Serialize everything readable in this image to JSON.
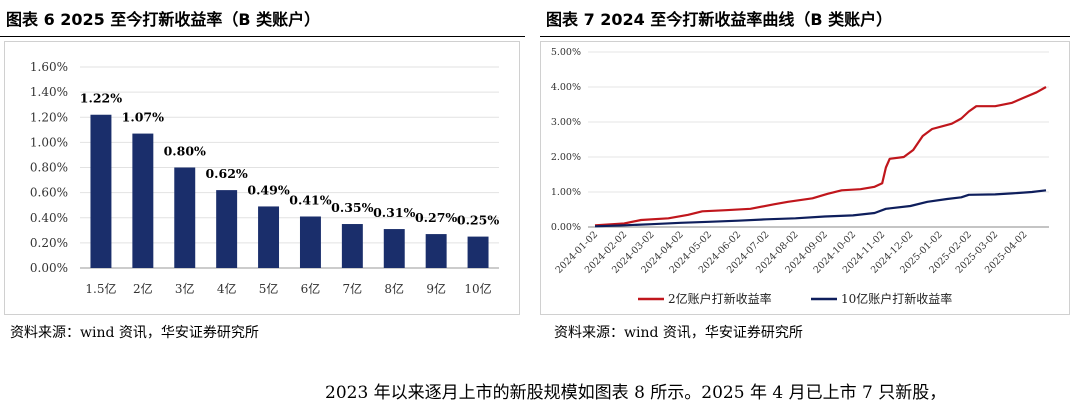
{
  "left_panel": {
    "title": "图表 6 2025 至今打新收益率（B 类账户）",
    "source": "资料来源：wind 资讯，华安证券研究所"
  },
  "right_panel": {
    "title": "图表 7 2024 至今打新收益率曲线（B 类账户）",
    "source": "资料来源：wind 资讯，华安证券研究所"
  },
  "body": {
    "text": "2023 年以来逐月上市的新股规模如图表 8 所示。2025 年 4 月已上市 7 只新股，"
  },
  "chart_data": [
    {
      "type": "bar",
      "title": "",
      "categories": [
        "1.5亿",
        "2亿",
        "3亿",
        "4亿",
        "5亿",
        "6亿",
        "7亿",
        "8亿",
        "9亿",
        "10亿"
      ],
      "values": [
        1.22,
        1.07,
        0.8,
        0.62,
        0.49,
        0.41,
        0.35,
        0.31,
        0.27,
        0.25
      ],
      "data_labels": [
        "1.22%",
        "1.07%",
        "0.80%",
        "0.62%",
        "0.49%",
        "0.41%",
        "0.35%",
        "0.31%",
        "0.27%",
        "0.25%"
      ],
      "yticks": [
        "0.00%",
        "0.20%",
        "0.40%",
        "0.60%",
        "0.80%",
        "1.00%",
        "1.20%",
        "1.40%",
        "1.60%"
      ],
      "ylim": [
        0,
        1.6
      ],
      "grid": true,
      "color": "#1a2e6b"
    },
    {
      "type": "line",
      "title": "",
      "x_ticks": [
        "2024-01-02",
        "2024-02-02",
        "2024-03-02",
        "2024-04-02",
        "2024-05-02",
        "2024-06-02",
        "2024-07-02",
        "2024-08-02",
        "2024-09-02",
        "2024-10-02",
        "2024-11-02",
        "2024-12-02",
        "2025-01-02",
        "2025-02-02",
        "2025-03-02",
        "2025-04-02"
      ],
      "yticks": [
        "0.00%",
        "1.00%",
        "2.00%",
        "3.00%",
        "4.00%",
        "5.00%"
      ],
      "ylim": [
        0,
        5
      ],
      "grid": true,
      "legend_position": "bottom",
      "series": [
        {
          "name": "2亿账户打新收益率",
          "color": "#c0161c",
          "points": [
            [
              "2024-01-02",
              0.05
            ],
            [
              "2024-02-02",
              0.1
            ],
            [
              "2024-02-20",
              0.2
            ],
            [
              "2024-03-20",
              0.25
            ],
            [
              "2024-04-10",
              0.35
            ],
            [
              "2024-04-25",
              0.45
            ],
            [
              "2024-05-20",
              0.48
            ],
            [
              "2024-06-15",
              0.52
            ],
            [
              "2024-07-10",
              0.65
            ],
            [
              "2024-07-25",
              0.72
            ],
            [
              "2024-08-20",
              0.82
            ],
            [
              "2024-09-05",
              0.95
            ],
            [
              "2024-09-20",
              1.05
            ],
            [
              "2024-10-10",
              1.08
            ],
            [
              "2024-10-25",
              1.15
            ],
            [
              "2024-11-02",
              1.25
            ],
            [
              "2024-11-06",
              1.7
            ],
            [
              "2024-11-10",
              1.95
            ],
            [
              "2024-11-25",
              2.0
            ],
            [
              "2024-12-05",
              2.2
            ],
            [
              "2024-12-15",
              2.6
            ],
            [
              "2024-12-25",
              2.8
            ],
            [
              "2025-01-15",
              2.95
            ],
            [
              "2025-01-25",
              3.1
            ],
            [
              "2025-02-02",
              3.3
            ],
            [
              "2025-02-10",
              3.45
            ],
            [
              "2025-03-02",
              3.45
            ],
            [
              "2025-03-20",
              3.55
            ],
            [
              "2025-04-02",
              3.7
            ],
            [
              "2025-04-15",
              3.85
            ],
            [
              "2025-04-25",
              4.0
            ]
          ]
        },
        {
          "name": "10亿账户打新收益率",
          "color": "#0e1e5c",
          "points": [
            [
              "2024-01-02",
              0.02
            ],
            [
              "2024-02-02",
              0.05
            ],
            [
              "2024-03-02",
              0.08
            ],
            [
              "2024-04-02",
              0.12
            ],
            [
              "2024-05-02",
              0.15
            ],
            [
              "2024-06-02",
              0.18
            ],
            [
              "2024-07-02",
              0.22
            ],
            [
              "2024-08-02",
              0.25
            ],
            [
              "2024-09-02",
              0.3
            ],
            [
              "2024-10-02",
              0.33
            ],
            [
              "2024-10-25",
              0.4
            ],
            [
              "2024-11-06",
              0.52
            ],
            [
              "2024-12-02",
              0.6
            ],
            [
              "2024-12-20",
              0.72
            ],
            [
              "2025-01-10",
              0.8
            ],
            [
              "2025-01-25",
              0.85
            ],
            [
              "2025-02-02",
              0.92
            ],
            [
              "2025-03-02",
              0.93
            ],
            [
              "2025-03-20",
              0.96
            ],
            [
              "2025-04-10",
              1.0
            ],
            [
              "2025-04-25",
              1.05
            ]
          ]
        }
      ]
    }
  ]
}
